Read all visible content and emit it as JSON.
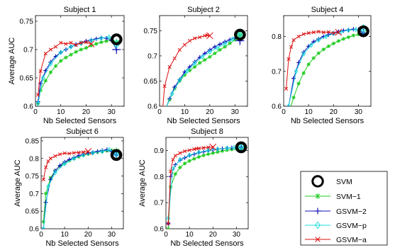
{
  "colors": {
    "SVM": "#000000",
    "SVM-1": "#22cc22",
    "GSVM-2": "#1111bb",
    "GSVM-p": "#22dddd",
    "GSVM-a": "#dd1111"
  },
  "legend": {
    "placement": "bottom-right",
    "entries": [
      "SVM",
      "SVM−1",
      "GSVM−2",
      "GSVM−p",
      "GSVM−a"
    ]
  },
  "chart_data": [
    {
      "type": "line",
      "title": "Subject 1",
      "xlabel": "Nb Selected Sensors",
      "ylabel": "Average AUC",
      "xlim": [
        0,
        35
      ],
      "ylim": [
        0.6,
        0.76
      ],
      "xticks": [
        0,
        10,
        20,
        30
      ],
      "xtick_labels": [
        "0",
        "10",
        "20",
        "30"
      ],
      "yticks": [
        0.6,
        0.65,
        0.7,
        0.75
      ],
      "ytick_labels": [
        "0.6",
        "0.65",
        "0.7",
        "0.75"
      ],
      "grid": false,
      "series": [
        {
          "name": "SVM",
          "x": [
            32
          ],
          "y": [
            0.718
          ]
        },
        {
          "name": "SVM−1",
          "x": [
            1,
            2,
            4,
            6,
            8,
            10,
            12,
            14,
            16,
            18,
            20,
            22,
            24,
            26,
            28,
            30,
            32
          ],
          "y": [
            0.605,
            0.628,
            0.645,
            0.66,
            0.671,
            0.68,
            0.686,
            0.691,
            0.696,
            0.7,
            0.703,
            0.707,
            0.71,
            0.713,
            0.715,
            0.717,
            0.712
          ]
        },
        {
          "name": "GSVM−2",
          "x": [
            1,
            2,
            4,
            6,
            8,
            10,
            12,
            14,
            16,
            18,
            20,
            22,
            24,
            26,
            28,
            30,
            32
          ],
          "y": [
            0.608,
            0.64,
            0.663,
            0.678,
            0.688,
            0.695,
            0.7,
            0.705,
            0.709,
            0.712,
            0.715,
            0.717,
            0.719,
            0.721,
            0.72,
            0.716,
            0.7
          ]
        },
        {
          "name": "GSVM−p",
          "x": [
            1,
            3,
            6,
            10,
            14,
            18,
            22,
            26,
            29,
            32
          ],
          "y": [
            0.605,
            0.65,
            0.675,
            0.695,
            0.705,
            0.711,
            0.716,
            0.72,
            0.722,
            0.71
          ]
        },
        {
          "name": "GSVM−a",
          "x": [
            1,
            2,
            4,
            6,
            8,
            10,
            12,
            14,
            16,
            18,
            20,
            22
          ],
          "y": [
            0.62,
            0.662,
            0.693,
            0.7,
            0.705,
            0.712,
            0.71,
            0.712,
            0.708,
            0.712,
            0.713,
            0.71
          ]
        }
      ]
    },
    {
      "type": "line",
      "title": "Subject 2",
      "xlabel": "Nb Selected Sensors",
      "ylabel": "",
      "xlim": [
        0,
        35
      ],
      "ylim": [
        0.6,
        0.78
      ],
      "xticks": [
        0,
        10,
        20,
        30
      ],
      "xtick_labels": [
        "0",
        "10",
        "20",
        "30"
      ],
      "yticks": [
        0.6,
        0.65,
        0.7,
        0.75
      ],
      "ytick_labels": [
        "0.6",
        "0.65",
        "0.7",
        "0.75"
      ],
      "grid": false,
      "series": [
        {
          "name": "SVM",
          "x": [
            32
          ],
          "y": [
            0.742
          ]
        },
        {
          "name": "SVM−1",
          "x": [
            2,
            4,
            6,
            8,
            10,
            12,
            14,
            16,
            18,
            20,
            22,
            24,
            26,
            28,
            30,
            32
          ],
          "y": [
            0.59,
            0.613,
            0.635,
            0.65,
            0.662,
            0.671,
            0.678,
            0.686,
            0.692,
            0.698,
            0.705,
            0.712,
            0.718,
            0.725,
            0.732,
            0.74
          ]
        },
        {
          "name": "GSVM−2",
          "x": [
            2,
            4,
            6,
            8,
            10,
            12,
            14,
            16,
            18,
            20,
            22,
            24,
            26,
            28,
            30,
            32
          ],
          "y": [
            0.59,
            0.615,
            0.638,
            0.653,
            0.668,
            0.678,
            0.688,
            0.697,
            0.705,
            0.712,
            0.718,
            0.723,
            0.728,
            0.732,
            0.736,
            0.73
          ]
        },
        {
          "name": "GSVM−p",
          "x": [
            2,
            5,
            8,
            11,
            14,
            17,
            20,
            23,
            26,
            29,
            32
          ],
          "y": [
            0.59,
            0.625,
            0.652,
            0.67,
            0.685,
            0.698,
            0.708,
            0.716,
            0.724,
            0.733,
            0.745
          ]
        },
        {
          "name": "GSVM−a",
          "x": [
            1,
            2,
            4,
            6,
            8,
            10,
            12,
            14,
            16,
            18,
            19,
            20
          ],
          "y": [
            0.58,
            0.64,
            0.678,
            0.695,
            0.712,
            0.722,
            0.73,
            0.735,
            0.737,
            0.74,
            0.741,
            0.74
          ]
        }
      ]
    },
    {
      "type": "line",
      "title": "Subject 4",
      "xlabel": "Nb Selected Sensors",
      "ylabel": "",
      "xlim": [
        0,
        35
      ],
      "ylim": [
        0.6,
        0.86
      ],
      "xticks": [
        0,
        10,
        20,
        30
      ],
      "xtick_labels": [
        "0",
        "10",
        "20",
        "30"
      ],
      "yticks": [
        0.6,
        0.7,
        0.8
      ],
      "ytick_labels": [
        "0.6",
        "0.7",
        "0.8"
      ],
      "grid": false,
      "series": [
        {
          "name": "SVM",
          "x": [
            32
          ],
          "y": [
            0.815
          ]
        },
        {
          "name": "SVM−1",
          "x": [
            2,
            4,
            6,
            8,
            10,
            12,
            14,
            16,
            18,
            20,
            22,
            24,
            26,
            28,
            30,
            32
          ],
          "y": [
            0.58,
            0.625,
            0.665,
            0.695,
            0.72,
            0.738,
            0.752,
            0.763,
            0.772,
            0.78,
            0.787,
            0.793,
            0.798,
            0.803,
            0.806,
            0.81
          ]
        },
        {
          "name": "GSVM−2",
          "x": [
            2,
            4,
            6,
            8,
            10,
            12,
            14,
            16,
            18,
            20,
            22,
            24,
            26,
            28,
            30,
            32
          ],
          "y": [
            0.6,
            0.68,
            0.725,
            0.755,
            0.772,
            0.785,
            0.793,
            0.8,
            0.805,
            0.81,
            0.814,
            0.817,
            0.819,
            0.821,
            0.82,
            0.81
          ]
        },
        {
          "name": "GSVM−p",
          "x": [
            2,
            5,
            8,
            11,
            14,
            17,
            20,
            23,
            26,
            29,
            32
          ],
          "y": [
            0.6,
            0.7,
            0.75,
            0.775,
            0.79,
            0.8,
            0.808,
            0.813,
            0.818,
            0.82,
            0.822
          ]
        },
        {
          "name": "GSVM−a",
          "x": [
            1,
            2,
            3,
            4,
            6,
            8,
            10,
            12,
            14,
            16,
            18,
            20,
            22
          ],
          "y": [
            0.65,
            0.735,
            0.77,
            0.79,
            0.8,
            0.807,
            0.81,
            0.812,
            0.814,
            0.812,
            0.813,
            0.81,
            0.812
          ]
        }
      ]
    },
    {
      "type": "line",
      "title": "Subject 6",
      "xlabel": "Nb Selected Sensors",
      "ylabel": "Average AUC",
      "xlim": [
        0,
        35
      ],
      "ylim": [
        0.6,
        0.86
      ],
      "xticks": [
        0,
        10,
        20,
        30
      ],
      "xtick_labels": [
        "0",
        "10",
        "20",
        "30"
      ],
      "yticks": [
        0.6,
        0.65,
        0.7,
        0.75,
        0.8,
        0.85
      ],
      "ytick_labels": [
        "0.6",
        "0.65",
        "0.7",
        "0.75",
        "0.8",
        "0.85"
      ],
      "grid": false,
      "series": [
        {
          "name": "SVM",
          "x": [
            32
          ],
          "y": [
            0.81
          ]
        },
        {
          "name": "SVM−1",
          "x": [
            1,
            2,
            4,
            6,
            8,
            10,
            12,
            14,
            16,
            18,
            20,
            22,
            24,
            26,
            28,
            30,
            32
          ],
          "y": [
            0.62,
            0.7,
            0.745,
            0.765,
            0.778,
            0.787,
            0.794,
            0.8,
            0.805,
            0.809,
            0.813,
            0.816,
            0.818,
            0.82,
            0.822,
            0.823,
            0.82
          ]
        },
        {
          "name": "GSVM−2",
          "x": [
            1,
            2,
            4,
            6,
            8,
            10,
            12,
            14,
            16,
            18,
            20,
            22,
            24,
            26,
            28,
            30,
            32
          ],
          "y": [
            0.6,
            0.675,
            0.74,
            0.765,
            0.78,
            0.79,
            0.797,
            0.803,
            0.808,
            0.812,
            0.815,
            0.818,
            0.82,
            0.823,
            0.825,
            0.82,
            0.81
          ]
        },
        {
          "name": "GSVM−p",
          "x": [
            1,
            3,
            6,
            10,
            14,
            18,
            22,
            26,
            29,
            32
          ],
          "y": [
            0.6,
            0.72,
            0.76,
            0.785,
            0.8,
            0.81,
            0.816,
            0.82,
            0.825,
            0.815
          ]
        },
        {
          "name": "GSVM−a",
          "x": [
            1,
            2,
            3,
            4,
            6,
            8,
            10,
            12,
            14,
            16,
            18,
            20
          ],
          "y": [
            0.74,
            0.775,
            0.792,
            0.8,
            0.807,
            0.812,
            0.815,
            0.814,
            0.816,
            0.817,
            0.818,
            0.82
          ]
        }
      ]
    },
    {
      "type": "line",
      "title": "Subject 8",
      "xlabel": "Nb Selected Sensors",
      "ylabel": "Average AUC",
      "xlim": [
        0,
        35
      ],
      "ylim": [
        0.6,
        0.95
      ],
      "xticks": [
        0,
        10,
        20,
        30
      ],
      "xtick_labels": [
        "0",
        "10",
        "20",
        "30"
      ],
      "yticks": [
        0.6,
        0.7,
        0.8,
        0.9
      ],
      "ytick_labels": [
        "0.6",
        "0.7",
        "0.8",
        "0.9"
      ],
      "grid": false,
      "series": [
        {
          "name": "SVM",
          "x": [
            32
          ],
          "y": [
            0.912
          ]
        },
        {
          "name": "SVM−1",
          "x": [
            1,
            2,
            4,
            6,
            8,
            10,
            12,
            14,
            16,
            18,
            20,
            22,
            24,
            26,
            28,
            30,
            32
          ],
          "y": [
            0.6,
            0.76,
            0.81,
            0.835,
            0.85,
            0.86,
            0.868,
            0.875,
            0.881,
            0.886,
            0.89,
            0.894,
            0.898,
            0.901,
            0.904,
            0.906,
            0.908
          ]
        },
        {
          "name": "GSVM−2",
          "x": [
            1,
            2,
            4,
            6,
            8,
            10,
            12,
            14,
            16,
            18,
            20,
            22,
            24,
            26,
            28,
            30,
            32
          ],
          "y": [
            0.62,
            0.8,
            0.845,
            0.862,
            0.872,
            0.88,
            0.886,
            0.891,
            0.895,
            0.899,
            0.902,
            0.905,
            0.907,
            0.909,
            0.91,
            0.911,
            0.912
          ]
        },
        {
          "name": "GSVM−p",
          "x": [
            1,
            3,
            6,
            10,
            14,
            18,
            22,
            26,
            29,
            32
          ],
          "y": [
            0.64,
            0.83,
            0.865,
            0.882,
            0.893,
            0.9,
            0.905,
            0.909,
            0.911,
            0.915
          ]
        },
        {
          "name": "GSVM−a",
          "x": [
            1,
            2,
            3,
            4,
            6,
            8,
            10,
            12,
            13,
            14,
            16,
            18,
            20
          ],
          "y": [
            0.62,
            0.82,
            0.865,
            0.88,
            0.89,
            0.897,
            0.901,
            0.905,
            0.907,
            0.908,
            0.91,
            0.912,
            0.913
          ]
        }
      ]
    }
  ]
}
